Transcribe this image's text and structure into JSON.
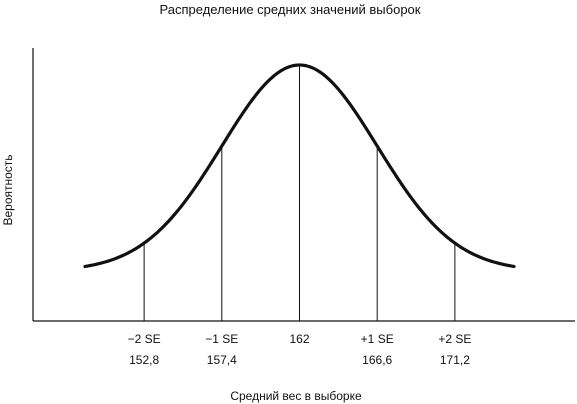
{
  "chart_data": {
    "type": "line",
    "title": "Распределение средних значений выборок",
    "xlabel": "Средний вес в выборке",
    "ylabel": "Вероятность",
    "mean": 162,
    "se": 4.6,
    "xlim": [
      149.3,
      174.7
    ],
    "grid": false,
    "ticks": [
      {
        "se_label": "−2 SE",
        "value": 152.8,
        "value_label": "152,8"
      },
      {
        "se_label": "−1 SE",
        "value": 157.4,
        "value_label": "157,4"
      },
      {
        "se_label": "",
        "value": 162,
        "value_label": "162"
      },
      {
        "se_label": "+1 SE",
        "value": 166.6,
        "value_label": "166,6"
      },
      {
        "se_label": "+2 SE",
        "value": 171.2,
        "value_label": "171,2"
      }
    ]
  }
}
